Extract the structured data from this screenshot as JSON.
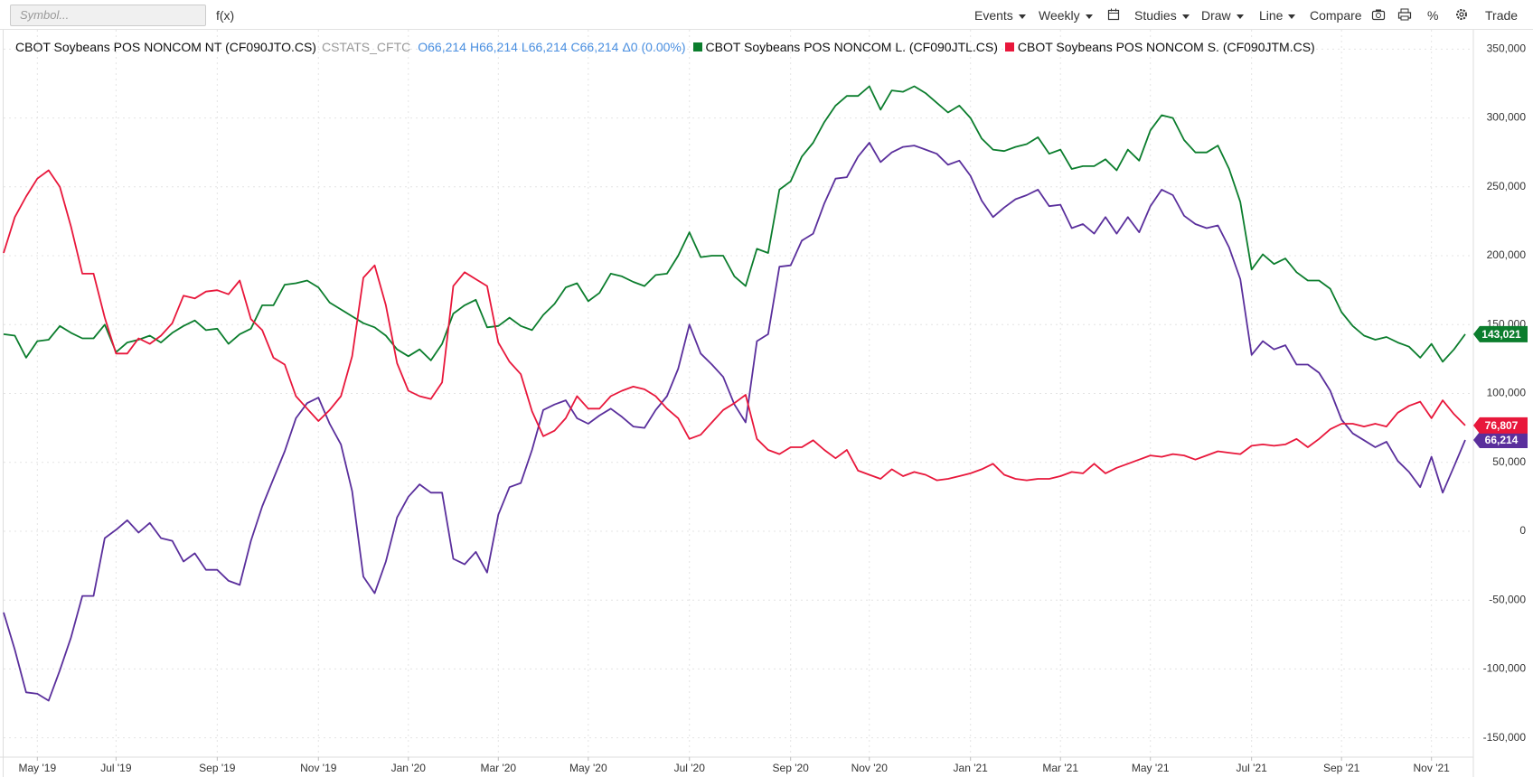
{
  "toolbar": {
    "symbol_placeholder": "Symbol...",
    "fx": "f(x)",
    "menus": [
      "Events",
      "Weekly",
      "Studies",
      "Draw",
      "Line",
      "Compare",
      "%",
      "Trade"
    ]
  },
  "chart_data": {
    "type": "line",
    "source": "CSTATS_CFTC",
    "quote": [
      "O66,214",
      "H66,214",
      "L66,214",
      "C66,214",
      "Δ0 (0.00%)"
    ],
    "categories": [
      null,
      null,
      null,
      "May '19",
      null,
      null,
      null,
      null,
      null,
      null,
      "Jul '19",
      null,
      null,
      null,
      null,
      null,
      null,
      null,
      null,
      "Sep '19",
      null,
      null,
      null,
      null,
      null,
      null,
      null,
      null,
      "Nov '19",
      null,
      null,
      null,
      null,
      null,
      null,
      null,
      "Jan '20",
      null,
      null,
      null,
      null,
      null,
      null,
      null,
      "Mar '20",
      null,
      null,
      null,
      null,
      null,
      null,
      null,
      "May '20",
      null,
      null,
      null,
      null,
      null,
      null,
      null,
      null,
      "Jul '20",
      null,
      null,
      null,
      null,
      null,
      null,
      null,
      null,
      "Sep '20",
      null,
      null,
      null,
      null,
      null,
      null,
      "Nov '20",
      null,
      null,
      null,
      null,
      null,
      null,
      null,
      null,
      "Jan '21",
      null,
      null,
      null,
      null,
      null,
      null,
      null,
      "Mar '21",
      null,
      null,
      null,
      null,
      null,
      null,
      null,
      "May '21",
      null,
      null,
      null,
      null,
      null,
      null,
      null,
      null,
      "Jul '21",
      null,
      null,
      null,
      null,
      null,
      null,
      null,
      "Sep '21",
      null,
      null,
      null,
      null,
      null,
      null,
      null,
      "Nov '21",
      null,
      null,
      null
    ],
    "series": [
      {
        "name": "CBOT Soybeans POS NONCOM NT (CF090JTO.CS)",
        "color": "#5a2f9c",
        "last_label": "66,214",
        "values": [
          -59000,
          -86000,
          -117000,
          -118000,
          -123000,
          -101000,
          -77000,
          -47000,
          -47000,
          -5000,
          1000,
          8000,
          -1000,
          6000,
          -5000,
          -7000,
          -22000,
          -16000,
          -28000,
          -28000,
          -36000,
          -39000,
          -7000,
          18000,
          38000,
          58000,
          82000,
          93000,
          97000,
          78000,
          63000,
          29000,
          -33000,
          -45000,
          -22000,
          10000,
          25000,
          34000,
          28000,
          28000,
          -20000,
          -24000,
          -15000,
          -30000,
          12000,
          32000,
          35000,
          59000,
          88000,
          92000,
          95000,
          82000,
          78000,
          84000,
          89000,
          83000,
          76000,
          75000,
          88000,
          98000,
          118000,
          150000,
          129000,
          121000,
          112000,
          92000,
          79000,
          138000,
          143000,
          192000,
          193000,
          211000,
          216000,
          238000,
          256000,
          257000,
          272000,
          282000,
          268000,
          275000,
          279000,
          280000,
          277000,
          274000,
          266000,
          269000,
          258000,
          240000,
          228000,
          235000,
          241000,
          244000,
          248000,
          236000,
          237000,
          220000,
          223000,
          216000,
          228000,
          216000,
          228000,
          217000,
          236000,
          248000,
          244000,
          229000,
          223000,
          220000,
          222000,
          206000,
          183000,
          128000,
          138000,
          132000,
          135000,
          121000,
          121000,
          115000,
          102000,
          81000,
          71000,
          66000,
          61000,
          65000,
          51000,
          43000,
          32000,
          54000,
          28000,
          47000,
          66214
        ]
      },
      {
        "name": "CBOT Soybeans POS NONCOM L. (CF090JTL.CS)",
        "color": "#0b7d2d",
        "last_label": "143,021",
        "values": [
          143000,
          142000,
          126000,
          138000,
          139000,
          149000,
          144000,
          140000,
          140000,
          150000,
          130000,
          137000,
          139000,
          142000,
          137000,
          144000,
          149000,
          153000,
          146000,
          147000,
          136000,
          143000,
          147000,
          164000,
          164000,
          179000,
          180000,
          182000,
          177000,
          166000,
          161000,
          156000,
          151000,
          148000,
          142000,
          132000,
          127000,
          132000,
          124000,
          136000,
          158000,
          164000,
          168000,
          148000,
          149000,
          155000,
          149000,
          146000,
          157000,
          165000,
          177000,
          180000,
          167000,
          173000,
          187000,
          185000,
          181000,
          178000,
          186000,
          187000,
          200000,
          217000,
          199000,
          200000,
          200000,
          185000,
          178000,
          205000,
          202000,
          248000,
          254000,
          272000,
          282000,
          297000,
          309000,
          316000,
          316000,
          323000,
          306000,
          320000,
          319000,
          323000,
          318000,
          311000,
          304000,
          309000,
          300000,
          285000,
          277000,
          276000,
          279000,
          281000,
          286000,
          274000,
          277000,
          263000,
          265000,
          265000,
          270000,
          262000,
          277000,
          269000,
          291000,
          302000,
          300000,
          284000,
          275000,
          275000,
          280000,
          263000,
          239000,
          190000,
          201000,
          194000,
          198000,
          188000,
          182000,
          182000,
          176000,
          159000,
          149000,
          142000,
          139000,
          141000,
          137000,
          134000,
          126000,
          136000,
          123000,
          132000,
          143021
        ]
      },
      {
        "name": "CBOT Soybeans POS NONCOM S. (CF090JTM.CS)",
        "color": "#e8173b",
        "last_label": "76,807",
        "values": [
          202000,
          228000,
          243000,
          256000,
          262000,
          250000,
          221000,
          187000,
          187000,
          155000,
          129000,
          129000,
          140000,
          136000,
          142000,
          151000,
          171000,
          169000,
          174000,
          175000,
          172000,
          182000,
          154000,
          146000,
          126000,
          121000,
          98000,
          89000,
          80000,
          88000,
          98000,
          127000,
          184000,
          193000,
          164000,
          122000,
          102000,
          98000,
          96000,
          108000,
          178000,
          188000,
          183000,
          178000,
          137000,
          123000,
          114000,
          87000,
          69000,
          73000,
          82000,
          98000,
          89000,
          89000,
          98000,
          102000,
          105000,
          103000,
          98000,
          89000,
          82000,
          67000,
          70000,
          79000,
          88000,
          93000,
          99000,
          67000,
          59000,
          56000,
          61000,
          61000,
          66000,
          59000,
          53000,
          59000,
          44000,
          41000,
          38000,
          45000,
          40000,
          43000,
          41000,
          37000,
          38000,
          40000,
          42000,
          45000,
          49000,
          41000,
          38000,
          37000,
          38000,
          38000,
          40000,
          43000,
          42000,
          49000,
          42000,
          46000,
          49000,
          52000,
          55000,
          54000,
          56000,
          55000,
          52000,
          55000,
          58000,
          57000,
          56000,
          62000,
          63000,
          62000,
          63000,
          67000,
          61000,
          67000,
          74000,
          78000,
          78000,
          76000,
          78000,
          76000,
          86000,
          91000,
          94000,
          82000,
          95000,
          85000,
          76807
        ]
      }
    ],
    "ylim": [
      -164000,
      364000
    ],
    "yticks": [
      {
        "value": -150000,
        "label": "-150,000"
      },
      {
        "value": -100000,
        "label": "-100,000"
      },
      {
        "value": -50000,
        "label": "-50,000"
      },
      0,
      {
        "value": 50000,
        "label": "50,000"
      },
      {
        "value": 100000,
        "label": "100,000"
      },
      {
        "value": 150000,
        "label": "150,000"
      },
      {
        "value": 200000,
        "label": "200,000"
      },
      {
        "value": 250000,
        "label": "250,000"
      },
      {
        "value": 300000,
        "label": "300,000"
      },
      {
        "value": 350000,
        "label": "350,000"
      }
    ],
    "grid": true
  }
}
